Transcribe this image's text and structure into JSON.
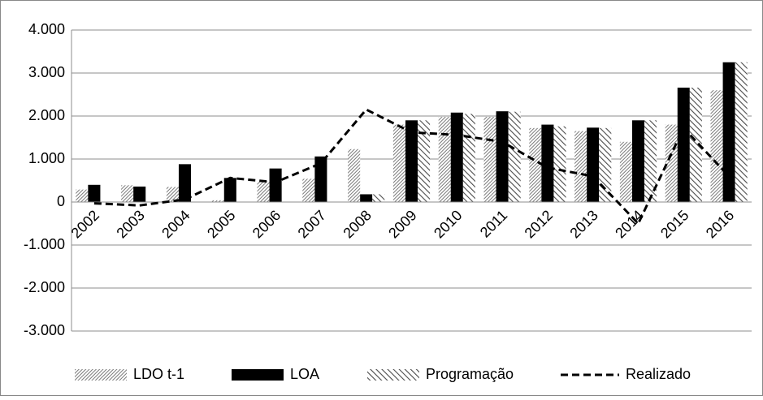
{
  "chart_data": {
    "type": "bar",
    "categories": [
      "2002",
      "2003",
      "2004",
      "2005",
      "2006",
      "2007",
      "2008",
      "2009",
      "2010",
      "2011",
      "2012",
      "2013",
      "2014",
      "2015",
      "2016"
    ],
    "series": [
      {
        "name": "LDO t-1",
        "type": "bar",
        "pattern": "dense",
        "color": "#7a7a7a",
        "values": [
          290,
          390,
          350,
          40,
          480,
          540,
          1230,
          1800,
          1980,
          1980,
          1720,
          1650,
          1400,
          1800,
          2600
        ]
      },
      {
        "name": "LOA",
        "type": "bar",
        "pattern": "solid",
        "color": "#000000",
        "values": [
          400,
          360,
          880,
          560,
          780,
          1060,
          180,
          1900,
          2080,
          2110,
          1800,
          1730,
          1900,
          2660,
          3250
        ]
      },
      {
        "name": "Programação",
        "type": "bar",
        "pattern": "diagonal",
        "color": "#4a4a4a",
        "values": [
          null,
          null,
          null,
          null,
          null,
          null,
          180,
          1900,
          2050,
          2100,
          1760,
          1720,
          1900,
          2660,
          3250
        ]
      },
      {
        "name": "Realizado",
        "type": "line",
        "dashed": true,
        "color": "#000000",
        "values": [
          -30,
          -80,
          60,
          560,
          460,
          900,
          2150,
          1620,
          1560,
          1400,
          800,
          600,
          -500,
          1720,
          600
        ]
      }
    ],
    "ylim": [
      -3000,
      4000
    ],
    "yticks": [
      {
        "value": -3000,
        "label": "-3.000"
      },
      {
        "value": -2000,
        "label": "-2.000"
      },
      {
        "value": -1000,
        "label": "-1.000"
      },
      0,
      {
        "value": 1000,
        "label": "1.000"
      },
      {
        "value": 2000,
        "label": "2.000"
      },
      {
        "value": 3000,
        "label": "3.000"
      },
      {
        "value": 4000,
        "label": "4.000"
      }
    ],
    "grid": true,
    "legend": "bottom"
  }
}
